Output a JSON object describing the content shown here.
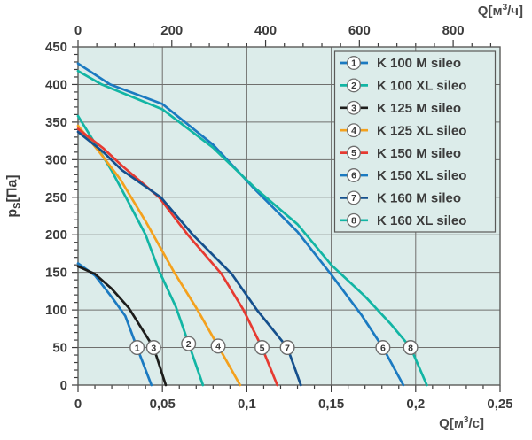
{
  "chart_data": {
    "type": "line",
    "title": "",
    "description": "Fan performance curves: static pressure vs air flow for 8 duct fan models",
    "legend_position": "top-right",
    "grid": true,
    "marker_pressure": 50,
    "x_axis_bottom": {
      "label": "Q[м³/с]",
      "min": 0,
      "max": 0.25,
      "minor_step": 0.01,
      "major_ticks": [
        {
          "value": 0,
          "label": "0"
        },
        {
          "value": 0.05,
          "label": "0,05"
        },
        {
          "value": 0.1,
          "label": "0,1"
        },
        {
          "value": 0.15,
          "label": "0,15"
        },
        {
          "value": 0.2,
          "label": "0,2"
        },
        {
          "value": 0.25,
          "label": "0,25"
        }
      ]
    },
    "x_axis_top": {
      "label": "Q[м³/ч]",
      "min": 0,
      "max_value_shown": 880,
      "minor_step": 40,
      "major_ticks": [
        {
          "value": 0,
          "label": "0"
        },
        {
          "value": 200,
          "label": "200"
        },
        {
          "value": 400,
          "label": "400"
        },
        {
          "value": 600,
          "label": "600"
        },
        {
          "value": 800,
          "label": "800"
        }
      ],
      "seconds_per_hour": 3600
    },
    "y_axis": {
      "label": "pS[Па]",
      "min": 0,
      "max": 450,
      "major_step": 50,
      "minor_step": 10,
      "tick_labels": [
        "0",
        "50",
        "100",
        "150",
        "200",
        "250",
        "300",
        "350",
        "400",
        "450"
      ]
    },
    "series": [
      {
        "num": "1",
        "label": "K 100 M sileo",
        "color": "#1b7ac1",
        "points": [
          [
            0,
            162
          ],
          [
            0.01,
            146
          ],
          [
            0.02,
            117
          ],
          [
            0.028,
            92
          ],
          [
            0.035,
            50
          ],
          [
            0.0435,
            0
          ]
        ],
        "marker_q": 0.035
      },
      {
        "num": "2",
        "label": "K 100 XL sileo",
        "color": "#12b5a4",
        "points": [
          [
            0,
            358
          ],
          [
            0.01,
            322
          ],
          [
            0.02,
            285
          ],
          [
            0.03,
            243
          ],
          [
            0.04,
            200
          ],
          [
            0.048,
            152
          ],
          [
            0.058,
            104
          ],
          [
            0.066,
            52
          ],
          [
            0.074,
            0
          ]
        ],
        "marker_q": 0.0655
      },
      {
        "num": "3",
        "label": "K 125 M sileo",
        "color": "#1d1d1b",
        "points": [
          [
            0,
            158
          ],
          [
            0.01,
            148
          ],
          [
            0.02,
            128
          ],
          [
            0.03,
            103
          ],
          [
            0.0448,
            50
          ],
          [
            0.052,
            0
          ]
        ],
        "marker_q": 0.0448
      },
      {
        "num": "4",
        "label": "K 125 XL sileo",
        "color": "#f4a11d",
        "points": [
          [
            0,
            345
          ],
          [
            0.012,
            312
          ],
          [
            0.025,
            274
          ],
          [
            0.04,
            218
          ],
          [
            0.057,
            150
          ],
          [
            0.07,
            103
          ],
          [
            0.083,
            52
          ],
          [
            0.096,
            0
          ]
        ],
        "marker_q": 0.083
      },
      {
        "num": "5",
        "label": "K 150 M sileo",
        "color": "#e63a31",
        "points": [
          [
            0,
            341
          ],
          [
            0.015,
            315
          ],
          [
            0.026,
            292
          ],
          [
            0.048,
            250
          ],
          [
            0.065,
            200
          ],
          [
            0.085,
            148
          ],
          [
            0.098,
            100
          ],
          [
            0.109,
            50
          ],
          [
            0.118,
            0
          ]
        ],
        "marker_q": 0.109
      },
      {
        "num": "6",
        "label": "K 150 XL sileo",
        "color": "#1b7ac1",
        "points": [
          [
            0,
            428
          ],
          [
            0.019,
            400
          ],
          [
            0.05,
            374
          ],
          [
            0.08,
            320
          ],
          [
            0.105,
            260
          ],
          [
            0.13,
            204
          ],
          [
            0.15,
            147
          ],
          [
            0.168,
            93
          ],
          [
            0.1806,
            50
          ],
          [
            0.1927,
            0
          ]
        ],
        "marker_q": 0.1806
      },
      {
        "num": "7",
        "label": "K 160 M sileo",
        "color": "#15508d",
        "points": [
          [
            0,
            337
          ],
          [
            0.015,
            310
          ],
          [
            0.026,
            286
          ],
          [
            0.049,
            250
          ],
          [
            0.068,
            200
          ],
          [
            0.091,
            148
          ],
          [
            0.106,
            100
          ],
          [
            0.124,
            50
          ],
          [
            0.132,
            0
          ]
        ],
        "marker_q": 0.124
      },
      {
        "num": "8",
        "label": "K 160 XL sileo",
        "color": "#12b5a4",
        "points": [
          [
            0,
            418
          ],
          [
            0.014,
            400
          ],
          [
            0.05,
            367
          ],
          [
            0.08,
            316
          ],
          [
            0.105,
            262
          ],
          [
            0.13,
            214
          ],
          [
            0.15,
            160
          ],
          [
            0.17,
            118
          ],
          [
            0.185,
            82
          ],
          [
            0.197,
            50
          ],
          [
            0.2066,
            0
          ]
        ],
        "marker_q": 0.197
      }
    ]
  },
  "axis_labels": {
    "top_prefix": "Q[м",
    "top_sup": "3",
    "top_suffix": "/ч]",
    "bottom_prefix": "Q[м",
    "bottom_sup": "3",
    "bottom_suffix": "/с]",
    "y_prefix": "p",
    "y_sub": "S",
    "y_suffix": "[Па]"
  },
  "colors": {
    "plot_background": "#dcecea",
    "gridline": "#6f6f6d",
    "plot_border": "#5a5a58",
    "tick_text": "#3b3b3b",
    "unit_text": "#4a4a4a",
    "marker_circle_border": "#6e6e6e",
    "marker_circle_fill": "#ffffff"
  }
}
